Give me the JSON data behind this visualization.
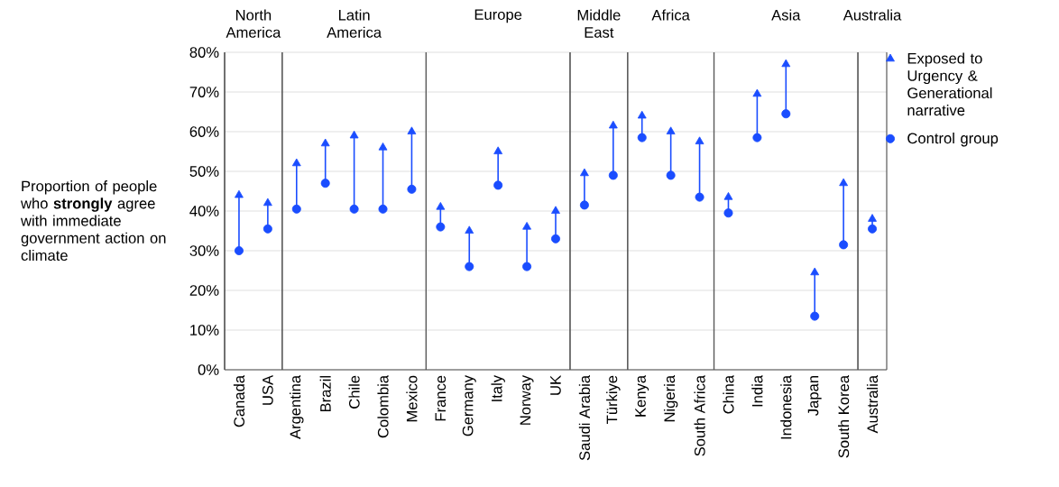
{
  "chart_data": {
    "type": "scatter",
    "ylabel": "Proportion of people who **strongly** agree with immediate government action on climate",
    "categories": [
      "Canada",
      "USA",
      "Argentina",
      "Brazil",
      "Chile",
      "Colombia",
      "Mexico",
      "France",
      "Germany",
      "Italy",
      "Norway",
      "UK",
      "Saudi Arabia",
      "Türkiye",
      "Kenya",
      "Nigeria",
      "South Africa",
      "China",
      "India",
      "Indonesia",
      "Japan",
      "South Korea",
      "Australia"
    ],
    "series": [
      {
        "name": "Exposed to Urgency & Generational narrative",
        "color": "#1a4dff",
        "marker": "triangle",
        "values": [
          44,
          42,
          52,
          57,
          59,
          56,
          60,
          41,
          35,
          55,
          36,
          40,
          49.5,
          61.5,
          64,
          60,
          57.5,
          43.5,
          69.5,
          77,
          24.5,
          47,
          38
        ]
      },
      {
        "name": "Control group",
        "color": "#1a4dff",
        "marker": "circle",
        "values": [
          30,
          35.5,
          40.5,
          47,
          40.5,
          40.5,
          45.5,
          36,
          26,
          46.5,
          26,
          33,
          41.5,
          49,
          58.5,
          49,
          43.5,
          39.5,
          58.5,
          64.5,
          13.5,
          31.5,
          35.5
        ]
      }
    ],
    "ylim": [
      0,
      80
    ],
    "yticks": [
      {
        "value": 0,
        "label": "0%"
      },
      {
        "value": 10,
        "label": "10%"
      },
      {
        "value": 20,
        "label": "20%"
      },
      {
        "value": 30,
        "label": "30%"
      },
      {
        "value": 40,
        "label": "40%"
      },
      {
        "value": 50,
        "label": "50%"
      },
      {
        "value": 60,
        "label": "60%"
      },
      {
        "value": 70,
        "label": "70%"
      },
      {
        "value": 80,
        "label": "80%"
      }
    ],
    "grid": "y",
    "legend": "top right",
    "annotations": [
      "North America",
      "Latin America",
      "Europe",
      "Middle East",
      "Africa",
      "Asia",
      "Australia"
    ]
  }
}
